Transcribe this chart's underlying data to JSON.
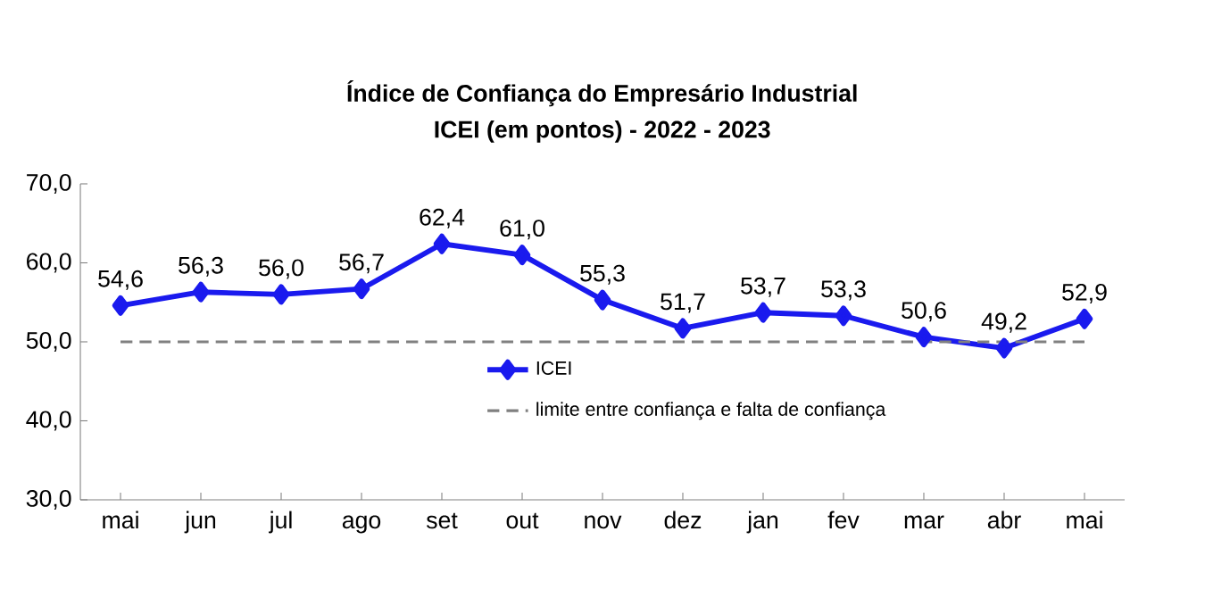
{
  "chart_data": {
    "type": "line",
    "title": "Índice de Confiança do Empresário Industrial",
    "subtitle": "ICEI (em pontos) - 2022 - 2023",
    "categories": [
      "mai",
      "jun",
      "jul",
      "ago",
      "set",
      "out",
      "nov",
      "dez",
      "jan",
      "fev",
      "mar",
      "abr",
      "mai"
    ],
    "series": [
      {
        "name": "ICEI",
        "color": "#1a1aee",
        "values": [
          54.6,
          56.3,
          56.0,
          56.7,
          62.4,
          61.0,
          55.3,
          51.7,
          53.7,
          53.3,
          50.6,
          49.2,
          52.9
        ],
        "value_labels": [
          "54,6",
          "56,3",
          "56,0",
          "56,7",
          "62,4",
          "61,0",
          "55,3",
          "51,7",
          "53,7",
          "53,3",
          "50,6",
          "49,2",
          "52,9"
        ]
      }
    ],
    "ylim": [
      30,
      70
    ],
    "yticks": [
      {
        "value": 30,
        "label": "30,0"
      },
      {
        "value": 40,
        "label": "40,0"
      },
      {
        "value": 50,
        "label": "50,0"
      },
      {
        "value": 60,
        "label": "60,0"
      },
      {
        "value": 70,
        "label": "70,0"
      }
    ],
    "ref_lines": [
      {
        "axis": "y",
        "value": 50,
        "label": "limite entre confiança e falta de confiança",
        "color": "#808080",
        "line_style": "dashed"
      }
    ],
    "marker": "diamond",
    "line_style": "solid",
    "grid": false,
    "legend": "center"
  }
}
